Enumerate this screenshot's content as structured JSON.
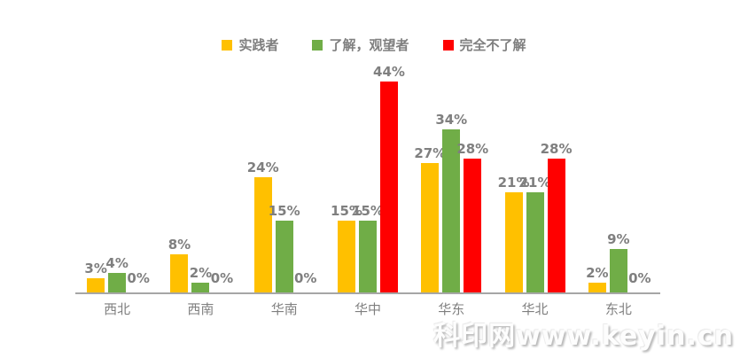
{
  "chart_data": {
    "type": "bar",
    "title": "",
    "categories": [
      "西北",
      "西南",
      "华南",
      "华中",
      "华东",
      "华北",
      "东北"
    ],
    "series": [
      {
        "name": "实践者",
        "color": "#FFC000",
        "values": [
          3,
          8,
          24,
          15,
          27,
          21,
          2
        ]
      },
      {
        "name": "了解，观望者",
        "color": "#70AD47",
        "values": [
          4,
          2,
          15,
          15,
          34,
          21,
          9
        ]
      },
      {
        "name": "完全不了解",
        "color": "#FF0000",
        "values": [
          0,
          0,
          0,
          44,
          28,
          28,
          0
        ]
      }
    ],
    "value_suffix": "%",
    "xlabel": "",
    "ylabel": "",
    "ylim": [
      0,
      48
    ],
    "grid": false,
    "data_labels": true,
    "legend_position": "top",
    "label_color": "#7f7f7f",
    "axis_color": "#a6a6a6"
  },
  "watermark": {
    "text": "科印网www.keyin.cn"
  }
}
